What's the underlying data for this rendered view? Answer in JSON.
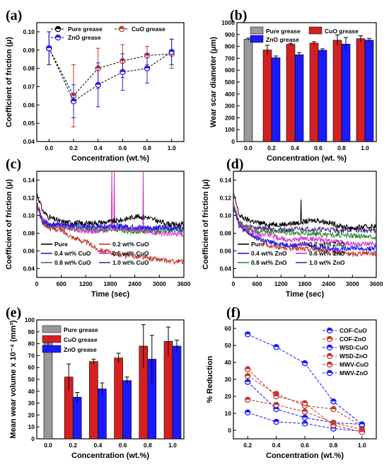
{
  "chart_data": [
    {
      "panel": "(a)",
      "type": "line",
      "xlabel": "Concentration (wt.%)",
      "ylabel": "Coefficient of friction (μ)",
      "xlim": [
        -0.1,
        1.1
      ],
      "ylim": [
        0.04,
        0.105
      ],
      "xticks": [
        "0.0",
        "0.2",
        "0.4",
        "0.6",
        "0.8",
        "1.0"
      ],
      "yticks": [
        "0.04",
        "0.05",
        "0.06",
        "0.07",
        "0.08",
        "0.09",
        "0.10"
      ],
      "legend_position": "top",
      "series": [
        {
          "name": "Pure grease",
          "color": "#000000",
          "x": [
            0.0
          ],
          "y": [
            0.091
          ],
          "err": [
            0.009
          ]
        },
        {
          "name": "CuO grease",
          "color": "#c0392b",
          "x": [
            0.0,
            0.2,
            0.4,
            0.6,
            0.8,
            1.0
          ],
          "y": [
            0.091,
            0.065,
            0.08,
            0.084,
            0.087,
            0.088
          ],
          "err": [
            0.009,
            0.017,
            0.011,
            0.009,
            0.005,
            0.008
          ]
        },
        {
          "name": "ZnO grease",
          "color": "#2222dd",
          "x": [
            0.0,
            0.2,
            0.4,
            0.6,
            0.8,
            1.0
          ],
          "y": [
            0.091,
            0.062,
            0.071,
            0.078,
            0.08,
            0.089
          ],
          "err": [
            0.009,
            0.009,
            0.012,
            0.01,
            0.008,
            0.007
          ]
        }
      ]
    },
    {
      "panel": "(b)",
      "type": "bar",
      "xlabel": "Concentration (wt. %)",
      "ylabel": "Wear scar diameter (μm)",
      "ylim": [
        0,
        1000
      ],
      "xticks": [
        "0.0",
        "0.2",
        "0.4",
        "0.6",
        "0.8",
        "1.0"
      ],
      "yticks": [
        "0",
        "100",
        "200",
        "300",
        "400",
        "500",
        "600",
        "700",
        "800",
        "900",
        "1000"
      ],
      "legend_position": "top",
      "series": [
        {
          "name": "Pure grease",
          "color": "#999999",
          "values": [
            860,
            null,
            null,
            null,
            null,
            null
          ],
          "err": [
            10,
            0,
            0,
            0,
            0,
            0
          ]
        },
        {
          "name": "CuO grease",
          "color": "#d42020",
          "values": [
            null,
            770,
            818,
            828,
            852,
            865
          ],
          "err": [
            0,
            40,
            8,
            12,
            45,
            25
          ]
        },
        {
          "name": "ZnO grease",
          "color": "#1a1aff",
          "values": [
            null,
            705,
            730,
            768,
            820,
            853
          ],
          "err": [
            0,
            15,
            18,
            12,
            55,
            15
          ]
        }
      ]
    },
    {
      "panel": "(c)",
      "type": "line",
      "xlabel": "Time (sec)",
      "ylabel": "Coefficient of friction (μ)",
      "xlim": [
        0,
        3600
      ],
      "ylim": [
        0.03,
        0.15
      ],
      "xticks": [
        "0",
        "600",
        "1200",
        "1800",
        "2400",
        "3000",
        "3600"
      ],
      "yticks": [
        "0.04",
        "0.06",
        "0.08",
        "0.10",
        "0.12",
        "0.14"
      ],
      "legend_position": "bottom",
      "series": [
        {
          "name": "Pure",
          "color": "#000000",
          "x": [
            0,
            150,
            300,
            600,
            900,
            1200,
            1500,
            1800,
            2100,
            2400,
            2700,
            3000,
            3300,
            3600
          ],
          "y": [
            0.125,
            0.105,
            0.098,
            0.093,
            0.092,
            0.091,
            0.092,
            0.093,
            0.095,
            0.099,
            0.098,
            0.093,
            0.09,
            0.09
          ]
        },
        {
          "name": "0.2 wt% CuO",
          "color": "#c0392b",
          "x": [
            0,
            150,
            300,
            600,
            900,
            1200,
            1500,
            1800,
            2100,
            2400,
            2700,
            3000,
            3300,
            3600
          ],
          "y": [
            0.115,
            0.092,
            0.086,
            0.083,
            0.075,
            0.07,
            0.062,
            0.058,
            0.055,
            0.054,
            0.052,
            0.05,
            0.048,
            0.048
          ]
        },
        {
          "name": "0.4 wt% CuO",
          "color": "#1a1aff",
          "x": [
            0,
            150,
            300,
            600,
            900,
            1200,
            1500,
            1800,
            2100,
            2400,
            2700,
            3000,
            3300,
            3600
          ],
          "y": [
            0.11,
            0.092,
            0.09,
            0.09,
            0.089,
            0.088,
            0.087,
            0.089,
            0.088,
            0.087,
            0.086,
            0.086,
            0.085,
            0.086
          ]
        },
        {
          "name": "0.6 wt% CuO",
          "color": "#cc33cc",
          "x": [
            0,
            150,
            300,
            600,
            900,
            1200,
            1500,
            1800,
            2100,
            2400,
            2700,
            3000,
            3300,
            3600
          ],
          "y": [
            0.112,
            0.096,
            0.09,
            0.088,
            0.084,
            0.082,
            0.082,
            0.086,
            0.085,
            0.084,
            0.082,
            0.08,
            0.079,
            0.079
          ]
        },
        {
          "name": "0.8 wt% CuO",
          "color": "#2a8a2a",
          "x": [
            0,
            150,
            300,
            600,
            900,
            1200,
            1500,
            1800,
            2100,
            2400,
            2700,
            3000,
            3300,
            3600
          ],
          "y": [
            0.112,
            0.092,
            0.088,
            0.086,
            0.085,
            0.084,
            0.083,
            0.084,
            0.083,
            0.082,
            0.082,
            0.082,
            0.083,
            0.083
          ]
        },
        {
          "name": "1.0 wt% CuO",
          "color": "#4b2a8a",
          "x": [
            0,
            150,
            300,
            600,
            900,
            1200,
            1500,
            1800,
            2100,
            2400,
            2700,
            3000,
            3300,
            3600
          ],
          "y": [
            0.11,
            0.093,
            0.09,
            0.088,
            0.087,
            0.086,
            0.086,
            0.087,
            0.086,
            0.085,
            0.085,
            0.086,
            0.087,
            0.087
          ]
        }
      ]
    },
    {
      "panel": "(d)",
      "type": "line",
      "xlabel": "Time (sec)",
      "ylabel": "Coefficient of friction (μ)",
      "xlim": [
        0,
        3600
      ],
      "ylim": [
        0.03,
        0.15
      ],
      "xticks": [
        "0",
        "600",
        "1200",
        "1800",
        "2400",
        "3000",
        "3600"
      ],
      "yticks": [
        "0.04",
        "0.06",
        "0.08",
        "0.10",
        "0.12",
        "0.14"
      ],
      "legend_position": "bottom",
      "series": [
        {
          "name": "Pure",
          "color": "#000000",
          "x": [
            0,
            150,
            300,
            600,
            900,
            1200,
            1500,
            1800,
            2100,
            2400,
            2700,
            3000,
            3300,
            3600
          ],
          "y": [
            0.125,
            0.1,
            0.096,
            0.092,
            0.09,
            0.09,
            0.091,
            0.093,
            0.095,
            0.092,
            0.088,
            0.086,
            0.087,
            0.088
          ]
        },
        {
          "name": "0.2 wt% ZnO",
          "color": "#c0392b",
          "x": [
            0,
            150,
            300,
            600,
            900,
            1200,
            1500,
            1800,
            2100,
            2400,
            2700,
            3000,
            3300,
            3600
          ],
          "y": [
            0.115,
            0.09,
            0.083,
            0.075,
            0.066,
            0.064,
            0.063,
            0.062,
            0.062,
            0.06,
            0.058,
            0.056,
            0.058,
            0.057
          ]
        },
        {
          "name": "0.4 wt% ZnO",
          "color": "#1a1aff",
          "x": [
            0,
            150,
            300,
            600,
            900,
            1200,
            1500,
            1800,
            2100,
            2400,
            2700,
            3000,
            3300,
            3600
          ],
          "y": [
            0.112,
            0.088,
            0.082,
            0.074,
            0.07,
            0.068,
            0.066,
            0.068,
            0.065,
            0.063,
            0.062,
            0.064,
            0.062,
            0.063
          ]
        },
        {
          "name": "0.6 wt% ZnO",
          "color": "#cc33cc",
          "x": [
            0,
            150,
            300,
            600,
            900,
            1200,
            1500,
            1800,
            2100,
            2400,
            2700,
            3000,
            3300,
            3600
          ],
          "y": [
            0.112,
            0.09,
            0.086,
            0.08,
            0.078,
            0.074,
            0.072,
            0.074,
            0.073,
            0.071,
            0.07,
            0.068,
            0.067,
            0.068
          ]
        },
        {
          "name": "0.8 wt% ZnO",
          "color": "#2a8a2a",
          "x": [
            0,
            150,
            300,
            600,
            900,
            1200,
            1500,
            1800,
            2100,
            2400,
            2700,
            3000,
            3300,
            3600
          ],
          "y": [
            0.112,
            0.09,
            0.086,
            0.082,
            0.082,
            0.082,
            0.08,
            0.08,
            0.079,
            0.078,
            0.078,
            0.077,
            0.077,
            0.076
          ]
        },
        {
          "name": "1.0 wt% ZnO",
          "color": "#4b2a8a",
          "x": [
            0,
            150,
            300,
            600,
            900,
            1200,
            1500,
            1800,
            2100,
            2400,
            2700,
            3000,
            3300,
            3600
          ],
          "y": [
            0.11,
            0.092,
            0.088,
            0.086,
            0.085,
            0.084,
            0.084,
            0.085,
            0.084,
            0.084,
            0.083,
            0.084,
            0.083,
            0.083
          ]
        }
      ]
    },
    {
      "panel": "(e)",
      "type": "bar",
      "xlabel": "Concentration (wt.%)",
      "ylabel": "Mean wear volume x 10⁻⁴ (mm³)",
      "ylim": [
        0,
        100
      ],
      "xticks": [
        "0.0",
        "0.2",
        "0.4",
        "0.6",
        "0.8",
        "1.0"
      ],
      "yticks": [
        "0",
        "10",
        "20",
        "30",
        "40",
        "50",
        "60",
        "70",
        "80",
        "90",
        "100"
      ],
      "legend_position": "top-left",
      "series": [
        {
          "name": "Pure grease",
          "color": "#999999",
          "values": [
            81,
            null,
            null,
            null,
            null,
            null
          ],
          "err": [
            4,
            0,
            0,
            0,
            0,
            0
          ]
        },
        {
          "name": "CuO grease",
          "color": "#d42020",
          "values": [
            null,
            52,
            65,
            68,
            78,
            82
          ],
          "err": [
            0,
            11,
            2,
            4,
            18,
            12
          ]
        },
        {
          "name": "ZnO grease",
          "color": "#1a1aff",
          "values": [
            null,
            35,
            42,
            49,
            67,
            78
          ],
          "err": [
            0,
            4,
            5,
            3,
            20,
            5
          ]
        }
      ]
    },
    {
      "panel": "(f)",
      "type": "line",
      "xlabel": "Concentration (wt.%)",
      "ylabel": "% Reduction",
      "xlim": [
        0.1,
        1.1
      ],
      "ylim": [
        -5,
        65
      ],
      "xticks": [
        "0.2",
        "0.4",
        "0.6",
        "0.8",
        "1.0"
      ],
      "yticks": [
        "0",
        "10",
        "20",
        "30",
        "40",
        "50",
        "60"
      ],
      "legend_position": "top-right",
      "series": [
        {
          "name": "COF-CuO",
          "color": "#1a1aff",
          "x": [
            0.2,
            0.4,
            0.6,
            0.8,
            1.0
          ],
          "y": [
            28.5,
            12.5,
            7.5,
            4.5,
            3.5
          ]
        },
        {
          "name": "COF-ZnO",
          "color": "#c0392b",
          "x": [
            0.2,
            0.4,
            0.6,
            0.8,
            1.0
          ],
          "y": [
            32.0,
            21.5,
            14.5,
            12.5,
            2.5
          ]
        },
        {
          "name": "WSD-CuO",
          "color": "#1a1aff",
          "x": [
            0.2,
            0.4,
            0.6,
            0.8,
            1.0
          ],
          "y": [
            10.5,
            5.0,
            4.0,
            1.0,
            -0.5
          ]
        },
        {
          "name": "WSD-ZnO",
          "color": "#c0392b",
          "x": [
            0.2,
            0.4,
            0.6,
            0.8,
            1.0
          ],
          "y": [
            18.0,
            15.0,
            11.0,
            4.5,
            0.5
          ]
        },
        {
          "name": "MWV-CuO",
          "color": "#c0392b",
          "x": [
            0.2,
            0.4,
            0.6,
            0.8,
            1.0
          ],
          "y": [
            36.0,
            20.0,
            16.0,
            3.0,
            -1.0
          ]
        },
        {
          "name": "MWV-ZnO",
          "color": "#1a1aff",
          "x": [
            0.2,
            0.4,
            0.6,
            0.8,
            1.0
          ],
          "y": [
            56.5,
            49.0,
            39.5,
            17.0,
            3.5
          ]
        }
      ]
    }
  ]
}
